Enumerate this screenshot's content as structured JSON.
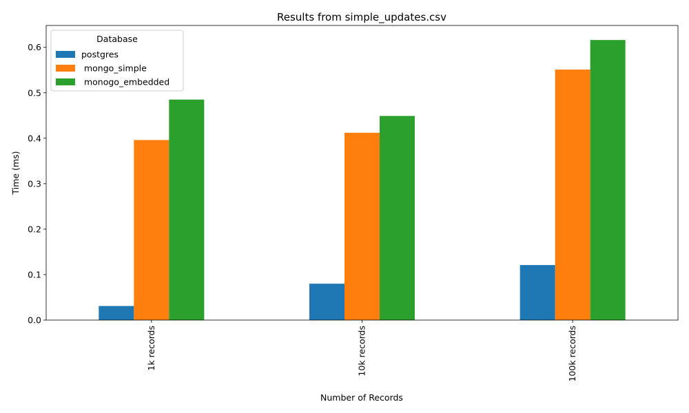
{
  "chart_data": {
    "type": "bar",
    "title": "Results from simple_updates.csv",
    "xlabel": "Number of Records",
    "ylabel": "Time (ms)",
    "categories": [
      "1k records",
      "10k records",
      "100k records"
    ],
    "series": [
      {
        "name": "postgres",
        "color": "#1f77b4",
        "values": [
          0.031,
          0.08,
          0.121
        ]
      },
      {
        "name": " mongo_simple",
        "color": "#ff7f0e",
        "values": [
          0.396,
          0.412,
          0.551
        ]
      },
      {
        "name": " monogo_embedded",
        "color": "#2ca02c",
        "values": [
          0.485,
          0.449,
          0.616
        ]
      }
    ],
    "ylim": [
      0,
      0.648
    ],
    "yticks": [
      0.0,
      0.1,
      0.2,
      0.3,
      0.4,
      0.5,
      0.6
    ],
    "ytick_labels": [
      "0.0",
      "0.1",
      "0.2",
      "0.3",
      "0.4",
      "0.5",
      "0.6"
    ],
    "legend": {
      "title": "Database",
      "position": "top-left"
    },
    "grid": false
  }
}
